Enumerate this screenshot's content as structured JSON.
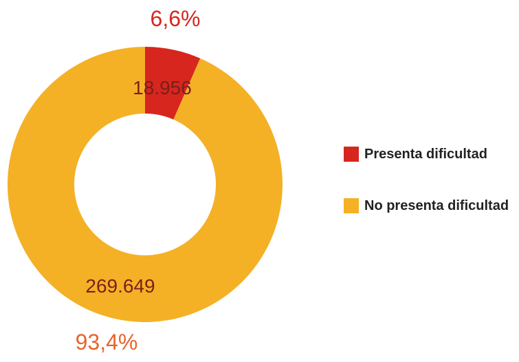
{
  "chart_data": {
    "type": "pie",
    "variant": "donut",
    "slices": [
      {
        "label": "Presenta dificultad",
        "value": 18956,
        "value_label": "18.956",
        "percent_label": "6,6%",
        "color": "#D7261E"
      },
      {
        "label": "No presenta dificultad",
        "value": 269649,
        "value_label": "269.649",
        "percent_label": "93,4%",
        "color": "#F4B126"
      }
    ],
    "legend_position": "right",
    "value_label_color": "#7A1F1A",
    "percent_label_colors": [
      "#D7261E",
      "#E8642A"
    ]
  }
}
